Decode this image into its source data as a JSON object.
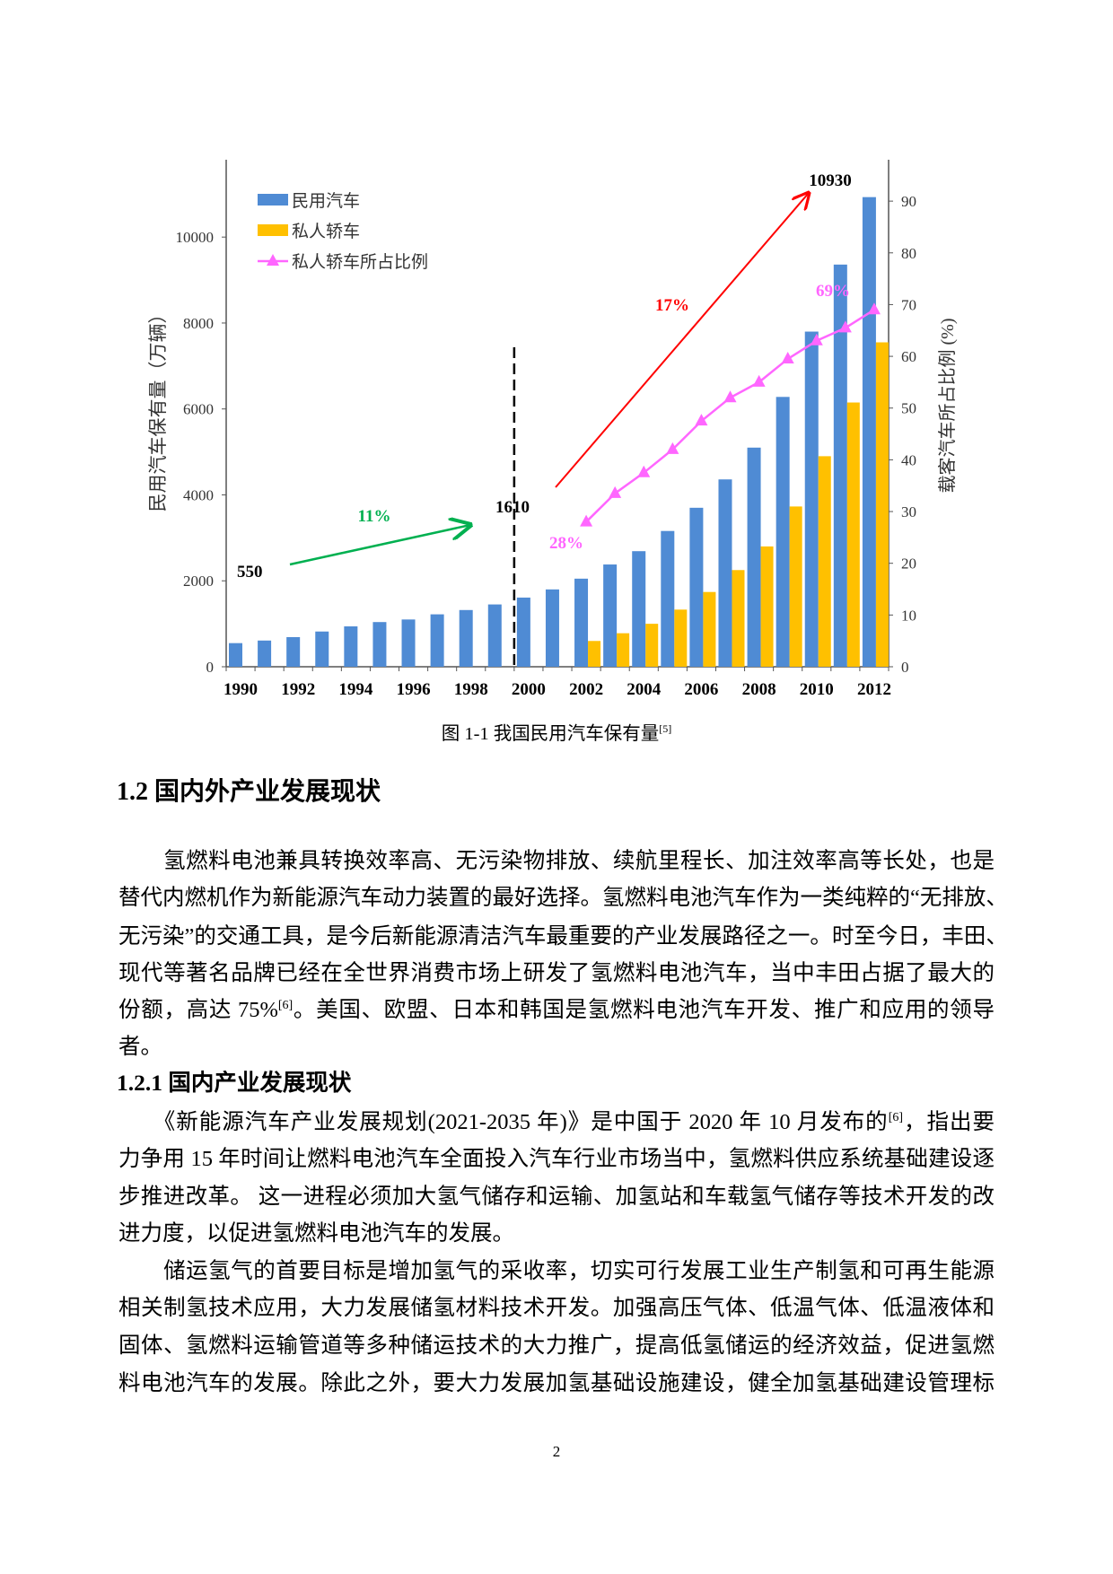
{
  "chart_data": {
    "type": "bar+line",
    "categories": [
      "1990",
      "1991",
      "1992",
      "1993",
      "1994",
      "1995",
      "1996",
      "1997",
      "1998",
      "1999",
      "2000",
      "2001",
      "2002",
      "2003",
      "2004",
      "2005",
      "2006",
      "2007",
      "2008",
      "2009",
      "2010",
      "2011",
      "2012"
    ],
    "x_tick_labels": [
      "1990",
      "1992",
      "1994",
      "1996",
      "1998",
      "2000",
      "2002",
      "2004",
      "2006",
      "2008",
      "2010",
      "2012"
    ],
    "series": [
      {
        "name": "民用汽车",
        "type": "bar",
        "axis": "left",
        "color": "#4f8bd4",
        "values": [
          550,
          610,
          690,
          820,
          940,
          1040,
          1100,
          1220,
          1320,
          1450,
          1610,
          1800,
          2050,
          2380,
          2690,
          3160,
          3700,
          4360,
          5100,
          6280,
          7800,
          9360,
          10930
        ]
      },
      {
        "name": "私人轿车",
        "type": "bar",
        "axis": "left",
        "color": "#ffc000",
        "values": [
          null,
          null,
          null,
          null,
          null,
          null,
          null,
          null,
          null,
          null,
          null,
          null,
          600,
          780,
          1000,
          1330,
          1740,
          2250,
          2800,
          3730,
          4900,
          6150,
          7550
        ]
      },
      {
        "name": "私人轿车所占比例",
        "type": "line",
        "axis": "right",
        "color": "#ff66ff",
        "marker": "triangle",
        "values": [
          null,
          null,
          null,
          null,
          null,
          null,
          null,
          null,
          null,
          null,
          null,
          null,
          28,
          33.5,
          37.5,
          42,
          47.5,
          52,
          55,
          59.5,
          63,
          65.5,
          69
        ]
      }
    ],
    "ylabel": "民用汽车保有量（万辆）",
    "y2label": "载客汽车所占比例 (%)",
    "ylim": [
      0,
      11800
    ],
    "y2lim": [
      0,
      98
    ],
    "y_ticks": [
      "0",
      "2000",
      "4000",
      "6000",
      "8000",
      "10000"
    ],
    "y2_ticks": [
      "0",
      "10",
      "20",
      "30",
      "40",
      "50",
      "60",
      "70",
      "80",
      "90"
    ],
    "legend_position": "top-left",
    "grid": false,
    "annotations": {
      "start_value": "550",
      "mid_value": "1610",
      "end_value": "10930",
      "growth_early": "11%",
      "growth_late": "17%",
      "ratio_start": "28%",
      "ratio_end": "69%"
    },
    "annotation_colors": {
      "green": "#00b050",
      "red": "#ff0000",
      "pink": "#ff66ff"
    },
    "divider_year": "2000"
  },
  "caption": {
    "text": "图 1-1 我国民用汽车保有量",
    "ref": "[5]"
  },
  "section": {
    "title": "1.2 国内外产业发展现状"
  },
  "subsection": {
    "title": "1.2.1 国内产业发展现状"
  },
  "paragraphs": [
    {
      "lines": [
        {
          "t": "　　氢燃料电池兼具转换效率高、无污染物排放、续航里程长、加注效率高等长处，也是"
        },
        {
          "t": "替代内燃机作为新能源汽车动力装置的最好选择。氢燃料电池汽车作为一类纯粹的“无排放、"
        },
        {
          "t": "无污染”的交通工具，是今后新能源清洁汽车最重要的产业发展路径之一。时至今日，丰田、"
        },
        {
          "t": "现代等著名品牌已经在全世界消费市场上研发了氢燃料电池汽车，当中丰田占据了最大的"
        },
        {
          "t": "份额，高达 75%",
          "sup": "[6]",
          "t2": "。美国、欧盟、日本和韩国是氢燃料电池汽车开发、推广和应用的领导"
        },
        {
          "t": "者。"
        }
      ]
    },
    {
      "lines": [
        {
          "t": "　　《新能源汽车产业发展规划(2021-2035 年)》是中国于 2020 年 10 月发布的",
          "sup": "[6]",
          "t2": "，指出要"
        },
        {
          "t": "力争用 15 年时间让燃料电池汽车全面投入汽车行业市场当中，氢燃料供应系统基础建设逐"
        },
        {
          "t": "步推进改革。 这一进程必须加大氢气储存和运输、加氢站和车载氢气储存等技术开发的改"
        },
        {
          "t": "进力度，以促进氢燃料电池汽车的发展。"
        }
      ]
    },
    {
      "lines": [
        {
          "t": "　　储运氢气的首要目标是增加氢气的采收率，切实可行发展工业生产制氢和可再生能源"
        },
        {
          "t": "相关制氢技术应用，大力发展储氢材料技术开发。加强高压气体、低温气体、低温液体和"
        },
        {
          "t": "固体、氢燃料运输管道等多种储运技术的大力推广，提高低氢储运的经济效益，促进氢燃"
        },
        {
          "t": "料电池汽车的发展。除此之外，要大力发展加氢基础设施建设，健全加氢基础建设管理标"
        }
      ]
    }
  ],
  "page_number": "2"
}
